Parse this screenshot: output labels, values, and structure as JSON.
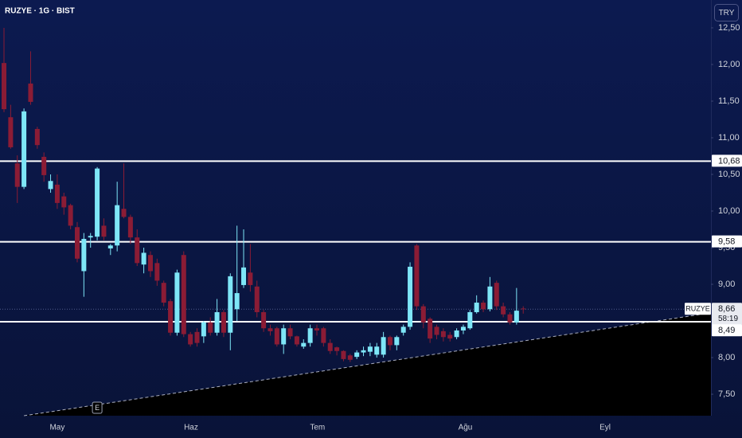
{
  "chart_data": {
    "type": "candlestick",
    "title": "RUZYE · 1G · BIST",
    "currency": "TRY",
    "series": [
      {
        "name": "RUZYE",
        "up_color": "#7ee6f7",
        "down_color": "#8b1c35",
        "open": [
          12.02,
          11.28,
          10.65,
          10.33,
          11.74,
          11.12,
          10.74,
          10.3,
          10.36,
          10.2,
          10.08,
          9.78,
          9.18,
          9.64,
          9.65,
          9.8,
          9.49,
          9.53,
          10.03,
          9.92,
          9.64,
          9.27,
          9.4,
          9.29,
          9.02,
          8.77,
          8.34,
          9.4,
          8.32,
          8.35,
          8.29,
          8.48,
          8.34,
          8.62,
          8.34,
          8.66,
          8.99,
          9.16,
          8.97,
          8.62,
          8.4,
          8.4,
          8.18,
          8.4,
          8.29,
          8.15,
          8.2,
          8.4,
          8.4,
          8.2,
          8.14,
          8.09,
          8.03,
          8.01,
          8.07,
          8.08,
          8.04,
          8.04,
          8.28,
          8.17,
          8.34,
          8.42,
          9.53,
          8.7,
          8.53,
          8.42,
          8.36,
          8.31,
          8.28,
          8.37,
          8.4,
          8.62,
          8.75,
          8.66,
          9.02,
          8.7,
          8.59,
          8.48,
          8.67
        ],
        "high": [
          12.5,
          11.45,
          10.76,
          11.4,
          12.18,
          11.15,
          10.8,
          10.5,
          10.5,
          10.25,
          10.1,
          9.85,
          9.7,
          9.7,
          10.6,
          9.9,
          9.55,
          10.4,
          10.65,
          9.95,
          9.75,
          9.5,
          9.45,
          9.35,
          9.05,
          8.8,
          9.2,
          9.45,
          8.35,
          8.4,
          8.5,
          8.55,
          8.8,
          8.65,
          9.15,
          9.8,
          9.75,
          9.55,
          9.05,
          8.65,
          8.45,
          8.42,
          8.45,
          8.45,
          8.3,
          8.25,
          8.45,
          8.45,
          8.42,
          8.25,
          8.15,
          8.1,
          8.05,
          8.1,
          8.15,
          8.2,
          8.2,
          8.35,
          8.3,
          8.3,
          8.45,
          9.3,
          9.55,
          8.73,
          8.55,
          8.45,
          8.4,
          8.35,
          8.4,
          8.45,
          8.65,
          8.85,
          8.78,
          9.1,
          9.05,
          8.75,
          8.62,
          8.95,
          8.7
        ],
        "low": [
          11.35,
          10.85,
          10.11,
          10.3,
          11.45,
          10.85,
          10.4,
          10.25,
          10.03,
          9.95,
          9.75,
          9.3,
          8.83,
          9.5,
          9.6,
          9.6,
          9.4,
          9.45,
          9.9,
          9.55,
          9.25,
          9.15,
          9.1,
          8.98,
          8.7,
          8.3,
          8.3,
          8.28,
          8.15,
          8.15,
          8.2,
          8.3,
          8.3,
          8.28,
          8.1,
          8.5,
          8.95,
          8.9,
          8.55,
          8.35,
          8.3,
          8.15,
          8.05,
          8.25,
          8.15,
          8.12,
          8.15,
          8.3,
          8.15,
          8.05,
          8.03,
          7.95,
          7.94,
          7.98,
          8.02,
          8.02,
          8.0,
          8.0,
          8.1,
          8.1,
          8.3,
          8.38,
          8.65,
          8.4,
          8.2,
          8.25,
          8.22,
          8.22,
          8.25,
          8.32,
          8.38,
          8.6,
          8.62,
          8.63,
          8.65,
          8.55,
          8.45,
          8.45,
          8.6
        ],
        "close": [
          11.39,
          10.87,
          10.33,
          11.36,
          11.49,
          10.9,
          10.49,
          10.41,
          10.11,
          10.05,
          9.8,
          9.35,
          9.62,
          9.66,
          10.58,
          9.65,
          9.53,
          10.08,
          9.92,
          9.64,
          9.29,
          9.43,
          9.18,
          9.05,
          8.75,
          8.34,
          9.16,
          8.32,
          8.18,
          8.2,
          8.48,
          8.34,
          8.62,
          8.34,
          9.11,
          8.88,
          9.23,
          8.99,
          8.62,
          8.4,
          8.36,
          8.18,
          8.4,
          8.29,
          8.18,
          8.2,
          8.4,
          8.37,
          8.2,
          8.09,
          8.09,
          7.98,
          7.97,
          8.07,
          8.1,
          8.15,
          8.15,
          8.28,
          8.17,
          8.28,
          8.42,
          9.24,
          8.7,
          8.48,
          8.26,
          8.31,
          8.28,
          8.26,
          8.37,
          8.42,
          8.62,
          8.75,
          8.66,
          8.97,
          8.7,
          8.59,
          8.48,
          8.64,
          8.66
        ]
      }
    ],
    "xlim": [
      -0.6,
      106.2
    ],
    "xticks": [
      {
        "value": 8.0,
        "label": "May"
      },
      {
        "value": 28.1,
        "label": "Haz"
      },
      {
        "value": 47.1,
        "label": "Tem"
      },
      {
        "value": 69.3,
        "label": "Ağu"
      },
      {
        "value": 90.3,
        "label": "Eyl"
      }
    ],
    "ylim": [
      7.207,
      12.88
    ],
    "yticks": [
      {
        "value": 12.5,
        "label": "12,50"
      },
      {
        "value": 12.0,
        "label": "12,00"
      },
      {
        "value": 11.5,
        "label": "11,50"
      },
      {
        "value": 11.0,
        "label": "11,00"
      },
      {
        "value": 10.5,
        "label": "10,50"
      },
      {
        "value": 10.0,
        "label": "10,00"
      },
      {
        "value": 9.5,
        "label": "9,50"
      },
      {
        "value": 9.0,
        "label": "9,00"
      },
      {
        "value": 8.5,
        "label": "8,50"
      },
      {
        "value": 8.0,
        "label": "8,00"
      },
      {
        "value": 7.5,
        "label": "7,50"
      }
    ],
    "hlines": [
      {
        "value": 10.68,
        "label": "10,68"
      },
      {
        "value": 9.58,
        "label": "9,58"
      },
      {
        "value": 8.49,
        "label": "8,49"
      }
    ],
    "last_price": {
      "value": 8.66,
      "label": "8,66"
    },
    "countdown": "58:19",
    "trend_line": {
      "x": [
        3.0,
        106.2
      ],
      "y": [
        7.207,
        8.61
      ]
    },
    "events": [
      {
        "x": 14.0,
        "label": "E"
      }
    ]
  }
}
